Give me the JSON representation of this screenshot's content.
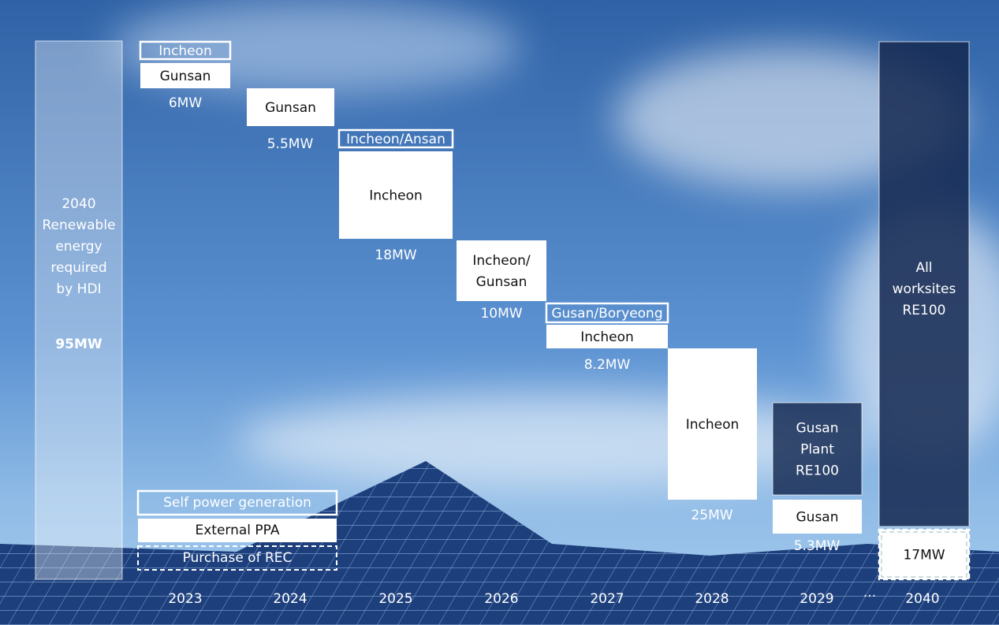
{
  "left_bar": {
    "lines": [
      "2040",
      "Renewable",
      "energy",
      "required",
      "by HDI"
    ],
    "total": "95MW"
  },
  "columns": [
    {
      "boxes": [
        {
          "lines": [
            "Incheon"
          ]
        },
        {
          "lines": [
            "Gunsan"
          ]
        }
      ],
      "amount": "6MW",
      "year": "2023"
    },
    {
      "boxes": [
        {
          "lines": [
            "Gunsan"
          ]
        }
      ],
      "amount": "5.5MW",
      "year": "2024"
    },
    {
      "boxes": [
        {
          "lines": [
            "Incheon/Ansan"
          ]
        },
        {
          "lines": [
            "Incheon"
          ]
        }
      ],
      "amount": "18MW",
      "year": "2025"
    },
    {
      "boxes": [
        {
          "lines": [
            "Incheon/",
            "Gunsan"
          ]
        }
      ],
      "amount": "10MW",
      "year": "2026"
    },
    {
      "boxes": [
        {
          "lines": [
            "Gusan/Boryeong"
          ]
        },
        {
          "lines": [
            "Incheon"
          ]
        }
      ],
      "amount": "8.2MW",
      "year": "2027"
    },
    {
      "boxes": [
        {
          "lines": [
            "Incheon"
          ]
        }
      ],
      "amount": "25MW",
      "year": "2028"
    },
    {
      "boxes": [
        {
          "lines": [
            "Gusan",
            "Plant",
            "RE100"
          ]
        },
        {
          "lines": [
            "Gusan"
          ]
        }
      ],
      "amount": "5.3MW",
      "year": "2029"
    },
    {
      "boxes": [
        {
          "lines": [
            "All",
            "worksites",
            "RE100"
          ]
        },
        {
          "lines": [
            "17MW"
          ]
        }
      ],
      "year": "2040"
    }
  ],
  "ellipsis": "···",
  "legend": [
    "Self power generation",
    "External PPA",
    "Purchase of REC"
  ]
}
